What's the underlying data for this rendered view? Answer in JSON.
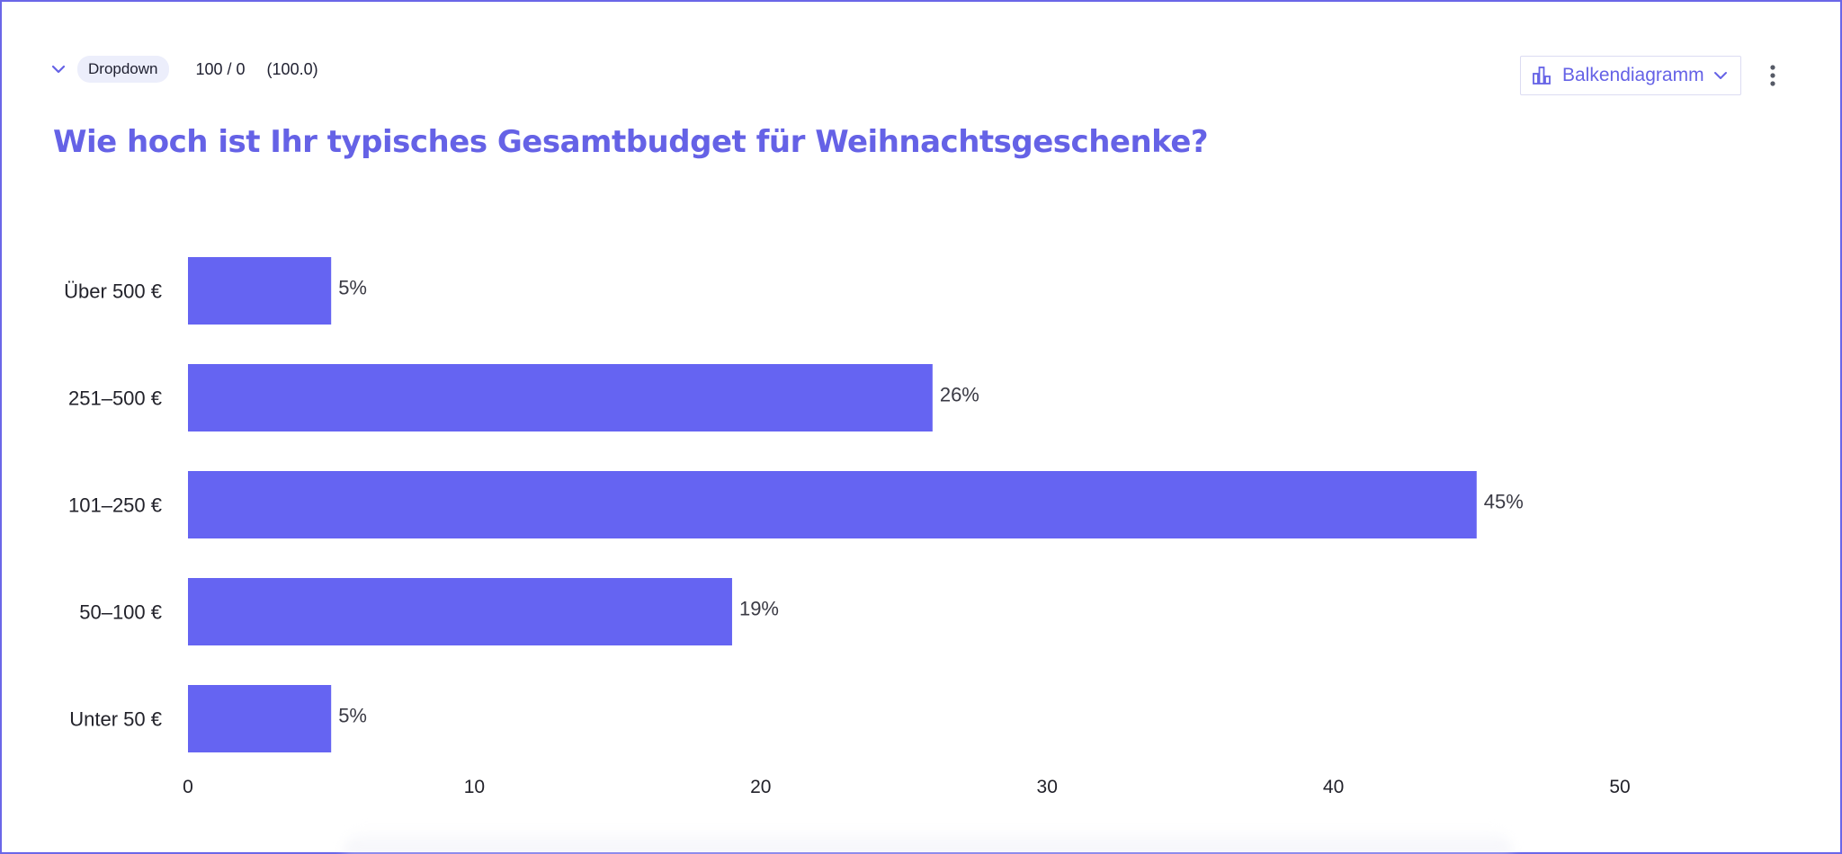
{
  "header": {
    "question_type": "Dropdown",
    "responses": "100 / 0",
    "score": "(100.0)",
    "chart_type_label": "Balkendiagramm",
    "accent_color": "#6562e6"
  },
  "question": {
    "title": "Wie hoch ist Ihr typisches Gesamtbudget für Weihnachtsgeschenke?"
  },
  "icons": {
    "collapse": "chevron-down-icon",
    "chart_type": "bar-chart-icon",
    "select_caret": "chevron-down-icon",
    "menu": "more-vertical-icon"
  },
  "chart_data": {
    "type": "bar",
    "orientation": "horizontal",
    "title": "",
    "xlabel": "",
    "ylabel": "",
    "categories": [
      "Über 500 €",
      "251–500 €",
      "101–250 €",
      "50–100 €",
      "Unter 50 €"
    ],
    "values": [
      5,
      26,
      45,
      19,
      5
    ],
    "data_labels": [
      "5%",
      "26%",
      "45%",
      "19%",
      "5%"
    ],
    "xlim": [
      0,
      50
    ],
    "x_ticks": [
      0,
      10,
      20,
      30,
      40,
      50
    ],
    "grid": false,
    "bar_color": "#6564f2"
  }
}
